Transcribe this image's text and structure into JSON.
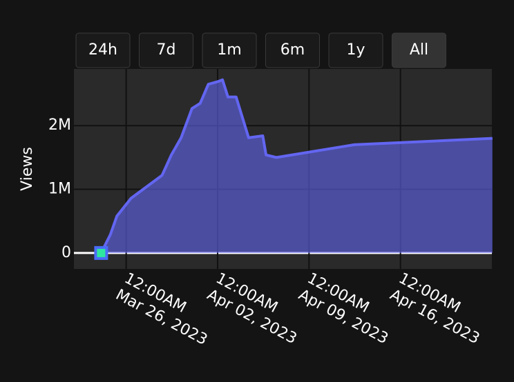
{
  "chart_data": {
    "type": "area",
    "range_buttons": [
      "24h",
      "7d",
      "1m",
      "6m",
      "1y",
      "All"
    ],
    "active_button": 5,
    "y_label": "Views",
    "x": [
      "2023-03-24 02:00",
      "2023-03-24 19:00",
      "2023-03-25 07:00",
      "2023-03-26 09:00",
      "2023-03-28 18:00",
      "2023-03-29 11:00",
      "2023-03-30 05:00",
      "2023-03-31 01:00",
      "2023-03-31 16:00",
      "2023-04-01 07:00",
      "2023-04-02 00:00",
      "2023-04-02 09:00",
      "2023-04-02 19:00",
      "2023-04-03 10:00",
      "2023-04-04 09:00",
      "2023-04-05 11:00",
      "2023-04-05 17:00",
      "2023-04-06 12:00",
      "2023-04-12 11:00",
      "2023-04-23 01:00"
    ],
    "series": [
      {
        "name": "Views",
        "color": "#6366f1",
        "values": [
          0,
          290000,
          580000,
          860000,
          1220000,
          1540000,
          1810000,
          2270000,
          2350000,
          2650000,
          2690000,
          2720000,
          2450000,
          2450000,
          1810000,
          1840000,
          1540000,
          1500000,
          1700000,
          1800000
        ]
      }
    ],
    "xlim": [
      "2023-03-22 00:00",
      "2023-04-23 00:00"
    ],
    "xticks": [
      {
        "value": "2023-03-26 00:00",
        "label": "12:00AM\nMar 26, 2023"
      },
      {
        "value": "2023-04-02 00:00",
        "label": "12:00AM\nApr 02, 2023"
      },
      {
        "value": "2023-04-09 00:00",
        "label": "12:00AM\nApr 09, 2023"
      },
      {
        "value": "2023-04-16 00:00",
        "label": "12:00AM\nApr 16, 2023"
      }
    ],
    "ylim": [
      -250000,
      2890000
    ],
    "yticks": [
      0,
      {
        "value": 1000000,
        "label": "1M"
      },
      {
        "value": 2000000,
        "label": "2M"
      }
    ],
    "grid": true
  }
}
